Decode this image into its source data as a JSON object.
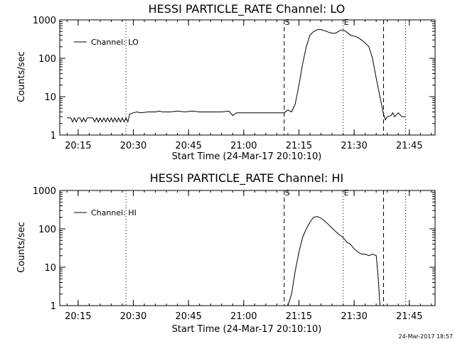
{
  "footer": {
    "timestamp": "24-Mar-2017 18:57"
  },
  "chart_data": [
    {
      "type": "line",
      "title": "HESSI PARTICLE_RATE Channel: LO",
      "xlabel": "Start Time (24-Mar-17 20:10:10)",
      "ylabel": "Counts/sec",
      "yscale": "log",
      "xlim": [
        "20:10",
        "21:52"
      ],
      "ylim": [
        1,
        1000
      ],
      "x_ticks": [
        "20:15",
        "20:30",
        "20:45",
        "21:00",
        "21:15",
        "21:30",
        "21:45"
      ],
      "y_ticks": [
        "1",
        "10",
        "100",
        "1000"
      ],
      "legend": {
        "label": "Channel: LO",
        "position": "top-left"
      },
      "series": [
        {
          "name": "Channel: LO",
          "x": [
            "20:12",
            "20:13",
            "20:13.5",
            "20:14",
            "20:14.5",
            "20:15",
            "20:15.5",
            "20:16",
            "20:16.5",
            "20:17",
            "20:17.5",
            "20:18",
            "20:19",
            "20:19.5",
            "20:20",
            "20:20.5",
            "20:21",
            "20:21.5",
            "20:22",
            "20:22.5",
            "20:23",
            "20:23.5",
            "20:24",
            "20:24.5",
            "20:25",
            "20:25.5",
            "20:26",
            "20:26.5",
            "20:27",
            "20:27.5",
            "20:28",
            "20:28.5",
            "20:29",
            "20:30",
            "20:31",
            "20:32",
            "20:34",
            "20:36",
            "20:37",
            "20:38",
            "20:40",
            "20:42",
            "20:44",
            "20:46",
            "20:48",
            "20:50",
            "20:52",
            "20:54",
            "20:56",
            "20:57",
            "20:58",
            "21:00",
            "21:02",
            "21:05",
            "21:08",
            "21:10",
            "21:11",
            "21:12",
            "21:13",
            "21:14",
            "21:15",
            "21:16",
            "21:17",
            "21:18",
            "21:19",
            "21:20",
            "21:21",
            "21:22",
            "21:23",
            "21:24",
            "21:25",
            "21:26",
            "21:27",
            "21:28",
            "21:29",
            "21:30",
            "21:31",
            "21:32",
            "21:33",
            "21:34",
            "21:35",
            "21:36",
            "21:37",
            "21:38",
            "21:38.5",
            "21:39",
            "21:40",
            "21:40.5",
            "21:41",
            "21:42",
            "21:43",
            "21:44"
          ],
          "y": [
            2.8,
            2.8,
            2.2,
            2.8,
            2.2,
            2.8,
            2.8,
            2.2,
            2.8,
            2.2,
            2.8,
            2.8,
            2.8,
            2.2,
            2.8,
            2.2,
            2.8,
            2.2,
            2.8,
            2.2,
            2.8,
            2.2,
            2.8,
            2.2,
            2.8,
            2.2,
            2.8,
            2.2,
            2.8,
            2.2,
            2.8,
            2.2,
            3.5,
            3.8,
            4.0,
            3.8,
            4.0,
            4.0,
            4.2,
            4.0,
            4.0,
            4.2,
            4.0,
            4.2,
            4.0,
            4.0,
            4.0,
            4.0,
            4.2,
            3.2,
            3.8,
            3.8,
            3.8,
            3.8,
            3.8,
            3.8,
            3.8,
            4.5,
            4.0,
            6.5,
            20,
            70,
            200,
            400,
            500,
            560,
            560,
            520,
            480,
            450,
            450,
            520,
            550,
            480,
            400,
            380,
            350,
            300,
            250,
            200,
            100,
            30,
            10,
            3.5,
            2.5,
            3.0,
            3.2,
            3.8,
            3.0,
            3.8,
            3.0,
            3.0
          ]
        }
      ],
      "markers": [
        {
          "x": "20:28",
          "style": "dotted",
          "label": ""
        },
        {
          "x": "21:11",
          "style": "dashed",
          "label": "S"
        },
        {
          "x": "21:27",
          "style": "dotted",
          "label": "E"
        },
        {
          "x": "21:38",
          "style": "dashed",
          "label": ""
        },
        {
          "x": "21:44",
          "style": "dotted",
          "label": ""
        }
      ]
    },
    {
      "type": "line",
      "title": "HESSI PARTICLE_RATE Channel: HI",
      "xlabel": "Start Time (24-Mar-17 20:10:10)",
      "ylabel": "Counts/sec",
      "yscale": "log",
      "xlim": [
        "20:10",
        "21:52"
      ],
      "ylim": [
        1,
        1000
      ],
      "x_ticks": [
        "20:15",
        "20:30",
        "20:45",
        "21:00",
        "21:15",
        "21:30",
        "21:45"
      ],
      "y_ticks": [
        "1",
        "10",
        "100",
        "1000"
      ],
      "legend": {
        "label": "Channel: HI",
        "position": "top-left"
      },
      "series": [
        {
          "name": "Channel: HI",
          "x": [
            "21:12",
            "21:13",
            "21:14",
            "21:15",
            "21:16",
            "21:17",
            "21:18",
            "21:19",
            "21:20",
            "21:21",
            "21:22",
            "21:23",
            "21:24",
            "21:25",
            "21:26",
            "21:27",
            "21:28",
            "21:29",
            "21:30",
            "21:31",
            "21:32",
            "21:33",
            "21:34",
            "21:35",
            "21:36",
            "21:36.5",
            "21:37"
          ],
          "y": [
            1.0,
            2.0,
            8,
            25,
            60,
            100,
            150,
            200,
            210,
            190,
            160,
            130,
            105,
            85,
            70,
            60,
            45,
            40,
            30,
            25,
            22,
            22,
            20,
            22,
            20,
            6,
            1.0
          ]
        }
      ],
      "markers": [
        {
          "x": "20:28",
          "style": "dotted",
          "label": ""
        },
        {
          "x": "21:11",
          "style": "dashed",
          "label": "S"
        },
        {
          "x": "21:27",
          "style": "dotted",
          "label": "E"
        },
        {
          "x": "21:38",
          "style": "dashed",
          "label": ""
        },
        {
          "x": "21:44",
          "style": "dotted",
          "label": ""
        }
      ]
    }
  ]
}
